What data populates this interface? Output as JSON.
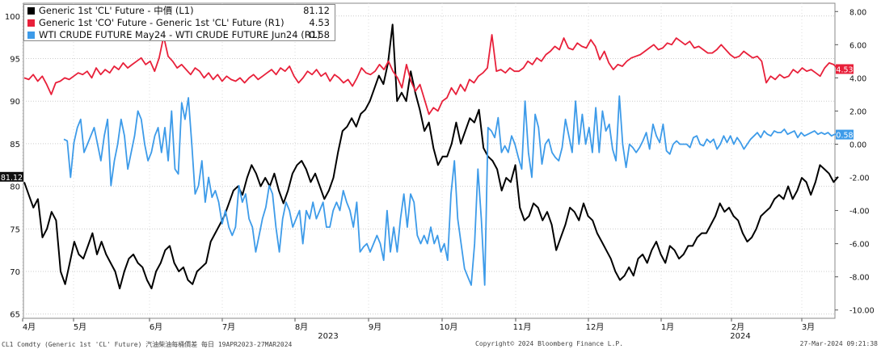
{
  "chart_data": {
    "type": "line",
    "axes": {
      "left": {
        "ticks": [
          65,
          70,
          75,
          80,
          85,
          90,
          95,
          100
        ],
        "ylim": [
          64.5,
          101.5
        ]
      },
      "right": {
        "ticks": [
          "-10.00",
          "-8.00",
          "-6.00",
          "-4.00",
          "-2.00",
          "0.00",
          "2.00",
          "4.00",
          "6.00",
          "8.00"
        ],
        "ylim": [
          -10.5,
          8.5
        ]
      },
      "x_labels": [
        "4月",
        "5月",
        "6月",
        "7月",
        "8月",
        "9月",
        "10月",
        "11月",
        "12月",
        "1月",
        "2月",
        "3月"
      ],
      "x_years": [
        "2023",
        "2024"
      ],
      "current_value_tags": {
        "left": "81.12",
        "right_red": "4.53",
        "right_blue": "0.58"
      }
    },
    "legend": [
      {
        "name": "Generic 1st 'CL' Future - 中價 (L1)",
        "value": "81.12",
        "color": "#000000"
      },
      {
        "name": "Generic 1st 'CO' Future - Generic 1st 'CL' Future (R1)",
        "value": "4.53",
        "color": "#e8203a"
      },
      {
        "name": "WTI CRUDE FUTURE May24 - WTI CRUDE FUTURE Jun24 (R1)",
        "value": "0.58",
        "color": "#3d9be9"
      }
    ],
    "series": [
      {
        "name": "Generic 1st 'CL' Future - 中價 (L1)",
        "axis": "left",
        "color": "#000000",
        "values": [
          80.5,
          79.0,
          77.5,
          78.5,
          74.0,
          75.0,
          77.0,
          76.0,
          70.0,
          68.5,
          71.0,
          73.5,
          72.0,
          71.5,
          73.0,
          74.5,
          72.0,
          73.5,
          72.0,
          71.0,
          70.0,
          68.0,
          70.0,
          71.5,
          72.0,
          71.0,
          70.5,
          69.0,
          68.0,
          70.0,
          71.0,
          72.5,
          73.0,
          71.0,
          70.0,
          70.5,
          69.0,
          68.5,
          70.0,
          70.5,
          71.0,
          73.5,
          74.5,
          75.5,
          76.5,
          78.0,
          79.5,
          80.0,
          79.0,
          81.0,
          82.5,
          81.5,
          80.0,
          81.0,
          80.0,
          81.5,
          79.5,
          78.0,
          79.5,
          81.5,
          82.5,
          83.0,
          82.0,
          80.5,
          81.5,
          80.0,
          78.5,
          79.5,
          81.0,
          84.0,
          86.5,
          87.0,
          88.0,
          87.0,
          88.5,
          89.0,
          90.0,
          91.5,
          93.0,
          92.0,
          94.5,
          99.0,
          90.0,
          91.0,
          90.0,
          93.5,
          91.0,
          89.0,
          86.5,
          87.5,
          84.5,
          82.5,
          83.5,
          83.5,
          85.0,
          87.5,
          85.0,
          86.5,
          88.0,
          87.5,
          89.0,
          84.5,
          83.5,
          83.0,
          82.0,
          79.5,
          81.0,
          80.5,
          82.5,
          77.5,
          76.0,
          76.5,
          78.0,
          77.5,
          76.0,
          77.0,
          75.5,
          72.5,
          74.0,
          75.5,
          77.5,
          77.0,
          76.0,
          78.0,
          76.5,
          76.0,
          74.5,
          73.5,
          72.5,
          71.5,
          70.0,
          69.0,
          69.5,
          70.5,
          69.5,
          71.5,
          72.0,
          71.0,
          72.5,
          73.5,
          72.0,
          71.0,
          73.0,
          72.5,
          71.5,
          72.0,
          73.0,
          73.0,
          74.0,
          74.5,
          74.5,
          75.5,
          76.5,
          78.0,
          77.0,
          77.5,
          76.5,
          76.0,
          74.5,
          73.5,
          74.0,
          75.0,
          76.5,
          77.0,
          77.5,
          78.5,
          79.0,
          78.5,
          80.0,
          78.5,
          79.5,
          81.0,
          80.5,
          79.0,
          80.5,
          82.5,
          82.0,
          81.5,
          80.5,
          81.12
        ]
      },
      {
        "name": "Generic 1st 'CO' Future - Generic 1st 'CL' Future (R1)",
        "axis": "right",
        "color": "#e8203a",
        "values": [
          4.0,
          3.9,
          4.2,
          3.8,
          4.1,
          3.6,
          3.0,
          3.7,
          3.8,
          4.0,
          3.9,
          4.1,
          4.3,
          4.2,
          4.4,
          4.0,
          4.6,
          4.2,
          4.5,
          4.3,
          4.7,
          4.5,
          4.9,
          4.6,
          4.8,
          5.0,
          5.2,
          4.8,
          5.0,
          4.4,
          5.2,
          6.5,
          5.3,
          5.0,
          4.6,
          4.8,
          4.5,
          4.2,
          4.6,
          4.4,
          4.0,
          4.3,
          3.9,
          4.2,
          3.8,
          4.1,
          3.9,
          3.8,
          4.0,
          3.7,
          4.0,
          4.2,
          3.9,
          4.1,
          4.3,
          4.5,
          4.2,
          4.6,
          4.4,
          4.7,
          4.1,
          3.7,
          4.0,
          4.4,
          4.2,
          4.5,
          4.1,
          4.3,
          3.8,
          4.2,
          4.0,
          3.7,
          3.9,
          3.5,
          4.0,
          4.6,
          4.3,
          4.2,
          4.4,
          4.8,
          4.5,
          5.0,
          4.4,
          4.0,
          3.4,
          4.8,
          3.8,
          3.2,
          3.6,
          2.7,
          1.8,
          2.2,
          2.0,
          2.6,
          2.8,
          3.4,
          3.0,
          3.6,
          3.2,
          3.9,
          3.7,
          4.1,
          4.3,
          4.6,
          6.6,
          4.4,
          4.5,
          4.3,
          4.6,
          4.4,
          4.4,
          4.6,
          5.0,
          4.8,
          5.2,
          5.0,
          5.4,
          5.6,
          5.9,
          5.7,
          6.4,
          5.8,
          5.7,
          6.1,
          5.9,
          5.8,
          6.3,
          5.9,
          5.1,
          5.6,
          4.9,
          4.5,
          4.8,
          4.7,
          5.0,
          5.2,
          5.3,
          5.4,
          5.6,
          5.8,
          6.0,
          5.7,
          5.8,
          6.1,
          6.0,
          6.4,
          6.2,
          6.0,
          6.2,
          5.8,
          5.9,
          5.7,
          5.5,
          5.5,
          5.7,
          6.0,
          5.7,
          5.4,
          5.2,
          5.3,
          5.6,
          5.4,
          5.2,
          5.3,
          5.0,
          3.7,
          4.1,
          3.9,
          4.2,
          4.0,
          4.1,
          4.5,
          4.3,
          4.6,
          4.4,
          4.5,
          4.3,
          4.1,
          4.6,
          4.9,
          4.8,
          4.53
        ]
      },
      {
        "name": "WTI CRUDE FUTURE May24 - WTI CRUDE FUTURE Jun24 (R1)",
        "axis": "right",
        "color": "#3d9be9",
        "x_start_index": 5,
        "values": [
          0.3,
          0.2,
          -2.0,
          0.1,
          1.0,
          1.5,
          -0.5,
          0.0,
          0.5,
          1.0,
          0.0,
          -1.0,
          0.5,
          1.5,
          -2.5,
          -1.0,
          0.0,
          1.5,
          0.5,
          -1.5,
          -0.5,
          0.5,
          2.0,
          1.5,
          0.0,
          -1.0,
          -0.5,
          0.5,
          1.0,
          -0.5,
          1.0,
          -1.0,
          2.0,
          -1.5,
          -1.8,
          2.5,
          1.5,
          2.8,
          0.0,
          -3.0,
          -2.5,
          -1.0,
          -3.5,
          -2.0,
          -3.2,
          -2.8,
          -3.5,
          -4.8,
          -4.0,
          -5.0,
          -5.5,
          -5.0,
          -2.5,
          -3.5,
          -3.0,
          -4.5,
          -5.0,
          -6.5,
          -5.5,
          -4.5,
          -3.8,
          -2.5,
          -3.0,
          -5.0,
          -6.5,
          -4.5,
          -3.5,
          -4.0,
          -5.0,
          -4.5,
          -4.0,
          -6.0,
          -4.0,
          -4.5,
          -3.5,
          -4.5,
          -4.0,
          -3.5,
          -5.0,
          -5.0,
          -4.0,
          -3.5,
          -4.0,
          -2.8,
          -3.5,
          -4.0,
          -5.0,
          -3.5,
          -6.5,
          -6.2,
          -6.0,
          -6.5,
          -6.0,
          -5.5,
          -6.0,
          -7.0,
          -4.0,
          -6.5,
          -5.0,
          -6.5,
          -4.5,
          -3.0,
          -5.0,
          -3.0,
          -3.5,
          -5.5,
          -6.0,
          -5.5,
          -6.0,
          -5.0,
          -6.0,
          -5.5,
          -6.5,
          -6.0,
          -7.0,
          -3.0,
          -1.0,
          -4.5,
          -6.0,
          -7.5,
          -8.0,
          -8.5,
          -6.0,
          -1.5,
          -4.5,
          -8.5,
          1.0,
          0.8,
          0.4,
          1.6,
          -0.5,
          -0.1,
          -0.5,
          0.5,
          0.0,
          -0.8,
          -1.5,
          2.6,
          -0.5,
          -2.0,
          1.8,
          1.0,
          -1.2,
          0.0,
          0.3,
          -0.5,
          -0.8,
          -1.0,
          -0.2,
          1.5,
          0.5,
          -0.5,
          2.6,
          0.0,
          1.8,
          0.0,
          1.0,
          -0.5,
          2.2,
          -0.5,
          2.0,
          0.8,
          1.2,
          -0.3,
          -1.0,
          2.9,
          0.0,
          -1.4,
          0.0,
          -0.2,
          -0.5,
          -0.2,
          0.2,
          0.7,
          -0.3,
          1.2,
          0.5,
          0.1,
          1.2,
          -0.4,
          -0.6,
          0.0,
          0.2,
          0.0,
          0.0,
          0.0,
          -0.2,
          0.4,
          0.5,
          0.0,
          -0.1,
          0.3,
          0.1,
          0.3,
          -0.3,
          0.0,
          0.5,
          0.1,
          0.5,
          0.0,
          0.4,
          0.1,
          -0.3,
          0.0,
          0.3,
          0.5,
          0.7,
          0.4,
          0.8,
          0.6,
          0.5,
          0.8,
          0.7,
          0.7,
          0.9,
          0.6,
          0.7,
          0.8,
          0.4,
          0.7,
          0.5,
          0.6,
          0.7,
          0.8,
          0.6,
          0.7,
          0.6,
          0.7,
          0.5,
          0.6,
          0.58
        ]
      }
    ]
  },
  "footer": {
    "left": "CL1 Comdty (Generic 1st 'CL' Future) 汽油柴油每桶價差  每日 19APR2023-27MAR2024",
    "center": "Copyright© 2024 Bloomberg Finance L.P.",
    "right": "27-Mar-2024 09:21:38"
  },
  "colors": {
    "grid": "#c8c8c8",
    "frame": "#888888"
  }
}
